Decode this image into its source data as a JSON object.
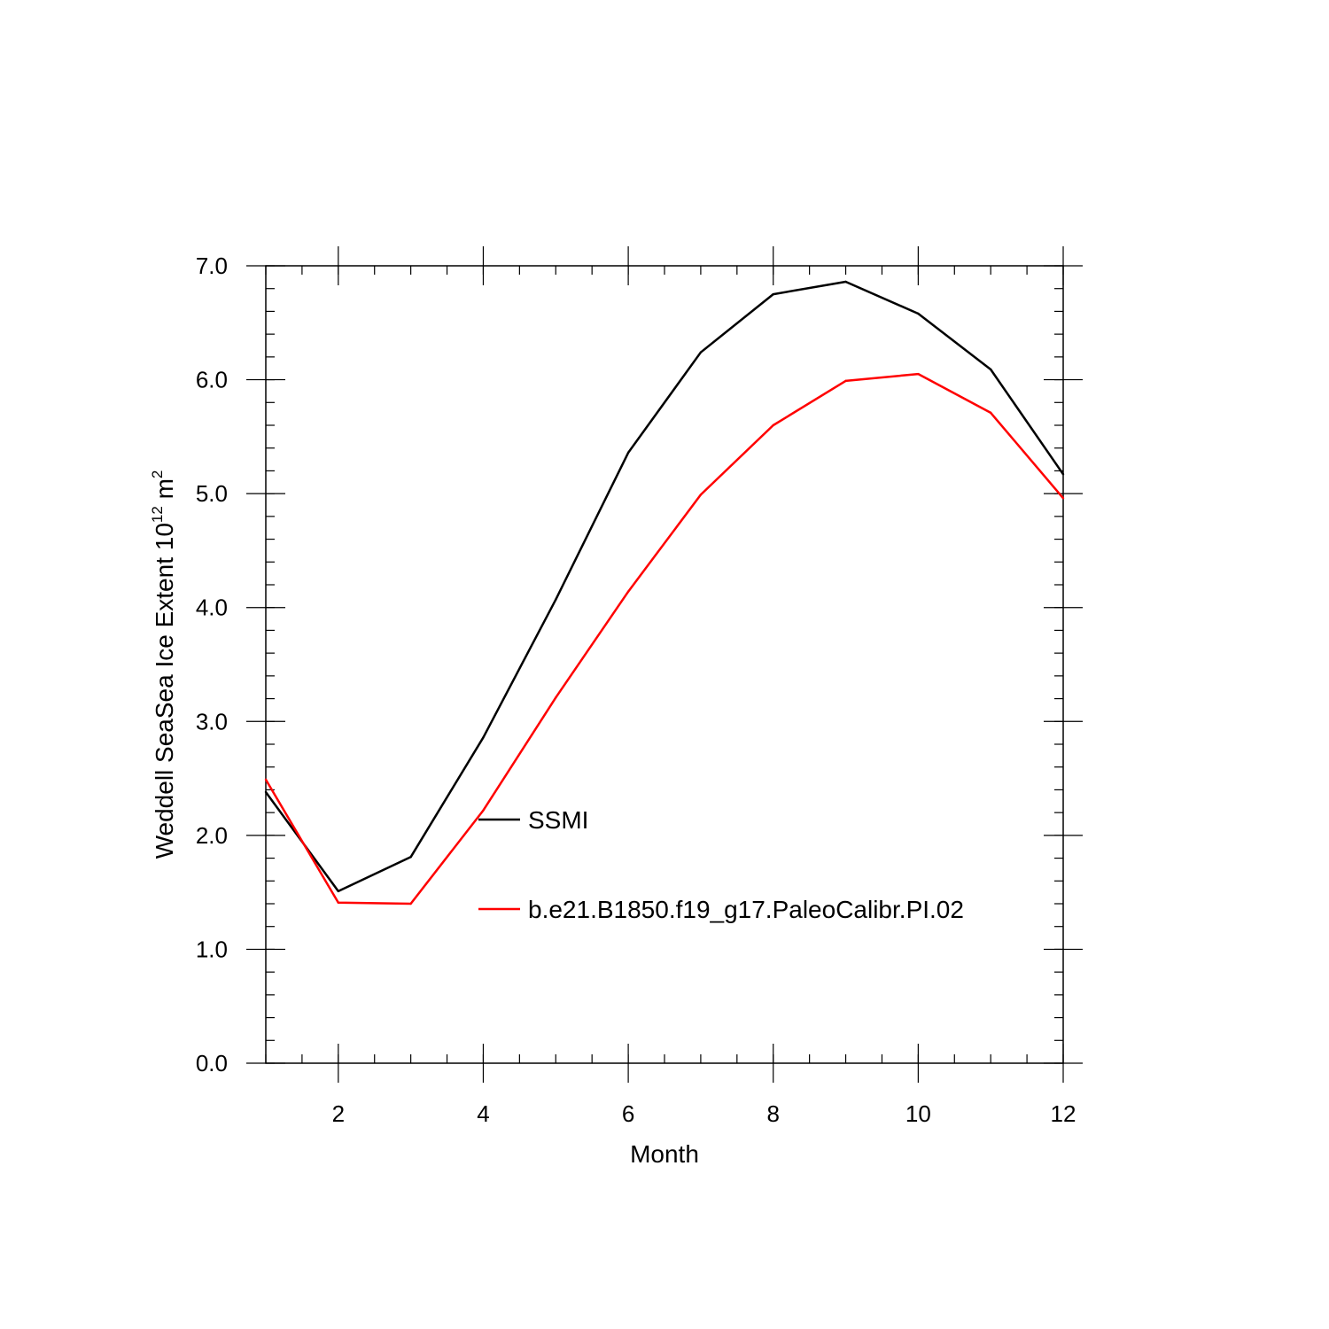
{
  "chart_data": {
    "type": "line",
    "xlabel": "Month",
    "ylabel": {
      "text": "Weddell SeaSea Ice Extent 10",
      "superscript1": "12",
      "unit": " m",
      "superscript2": "2"
    },
    "xlim": [
      1,
      12
    ],
    "ylim": [
      0.0,
      7.0
    ],
    "x_ticks": [
      2,
      4,
      6,
      8,
      10,
      12
    ],
    "x_tick_labels": [
      "2",
      "4",
      "6",
      "8",
      "10",
      "12"
    ],
    "y_ticks": [
      0.0,
      1.0,
      2.0,
      3.0,
      4.0,
      5.0,
      6.0,
      7.0
    ],
    "y_tick_labels": [
      "0.0",
      "1.0",
      "2.0",
      "3.0",
      "4.0",
      "5.0",
      "6.0",
      "7.0"
    ],
    "grid": false,
    "legend_placement": "inside-center",
    "x": [
      1,
      2,
      3,
      4,
      5,
      6,
      7,
      8,
      9,
      10,
      11,
      12
    ],
    "series": [
      {
        "name": "SSMI",
        "color": "#000000",
        "values": [
          2.38,
          1.51,
          1.81,
          2.86,
          4.07,
          5.36,
          6.24,
          6.75,
          6.86,
          6.58,
          6.09,
          5.17
        ]
      },
      {
        "name": "b.e21.B1850.f19_g17.PaleoCalibr.PI.02",
        "color": "#ff0000",
        "values": [
          2.49,
          1.41,
          1.4,
          2.22,
          3.21,
          4.14,
          4.99,
          5.6,
          5.99,
          6.05,
          5.71,
          4.96
        ]
      }
    ]
  }
}
